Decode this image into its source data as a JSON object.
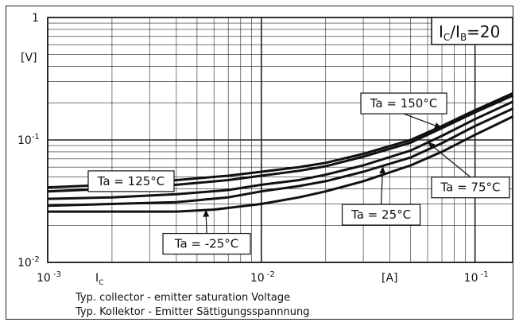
{
  "chart_data": {
    "type": "line",
    "title": "",
    "condition_label": "IC/IB=20",
    "condition_parts": {
      "main1": "I",
      "sub1": "C",
      "slash": "/I",
      "sub2": "B",
      "rest": "=20"
    },
    "xscale": "log",
    "yscale": "log",
    "xlim": [
      0.001,
      0.15
    ],
    "ylim": [
      0.01,
      1
    ],
    "x_tick_labels": [
      {
        "value": 0.001,
        "base": "10",
        "exp": "-3"
      },
      {
        "value": 0.01,
        "base": "10",
        "exp": "-2"
      },
      {
        "value": 0.1,
        "base": "10",
        "exp": "-1"
      }
    ],
    "y_tick_labels": [
      {
        "value": 1,
        "base": "1",
        "exp": ""
      },
      {
        "value": 0.1,
        "base": "10",
        "exp": "-1"
      },
      {
        "value": 0.01,
        "base": "10",
        "exp": "-2"
      }
    ],
    "xlabel_symbol": {
      "main": "I",
      "sub": "C"
    },
    "xlabel_unit": "[A]",
    "ylabel_unit": "[V]",
    "grid": true,
    "line_color": "#111111",
    "series": [
      {
        "name": "Ta = 125°C",
        "x": [
          0.001,
          0.002,
          0.004,
          0.007,
          0.01,
          0.015,
          0.02,
          0.03,
          0.05,
          0.07,
          0.1,
          0.15
        ],
        "y": [
          0.041,
          0.043,
          0.047,
          0.051,
          0.055,
          0.06,
          0.065,
          0.077,
          0.1,
          0.13,
          0.175,
          0.24
        ]
      },
      {
        "name": "Ta = 150°C",
        "x": [
          0.001,
          0.002,
          0.004,
          0.007,
          0.01,
          0.015,
          0.02,
          0.03,
          0.05,
          0.07,
          0.1,
          0.15
        ],
        "y": [
          0.038,
          0.04,
          0.043,
          0.047,
          0.051,
          0.056,
          0.061,
          0.073,
          0.095,
          0.125,
          0.168,
          0.23
        ]
      },
      {
        "name": "Ta = 75°C",
        "x": [
          0.001,
          0.002,
          0.004,
          0.007,
          0.01,
          0.015,
          0.02,
          0.03,
          0.05,
          0.07,
          0.1,
          0.15
        ],
        "y": [
          0.033,
          0.034,
          0.036,
          0.039,
          0.043,
          0.047,
          0.052,
          0.062,
          0.082,
          0.108,
          0.148,
          0.205
        ]
      },
      {
        "name": "Ta = 25°C",
        "x": [
          0.001,
          0.002,
          0.004,
          0.007,
          0.01,
          0.015,
          0.02,
          0.03,
          0.05,
          0.07,
          0.1,
          0.15
        ],
        "y": [
          0.029,
          0.03,
          0.031,
          0.034,
          0.038,
          0.042,
          0.046,
          0.055,
          0.072,
          0.094,
          0.13,
          0.18
        ]
      },
      {
        "name": "Ta = -25°C",
        "x": [
          0.001,
          0.002,
          0.004,
          0.006,
          0.01,
          0.015,
          0.02,
          0.03,
          0.05,
          0.07,
          0.1,
          0.15
        ],
        "y": [
          0.026,
          0.026,
          0.026,
          0.027,
          0.03,
          0.034,
          0.038,
          0.046,
          0.062,
          0.08,
          0.11,
          0.155
        ]
      }
    ],
    "annotations": [
      {
        "label": "Ta = 150°C",
        "target_series": 1,
        "x": 0.07,
        "y": 0.125
      },
      {
        "label": "Ta = 125°C",
        "target_series": 0,
        "x": 0.0025,
        "y": 0.044
      },
      {
        "label": "Ta = 75°C",
        "target_series": 2,
        "x": 0.06,
        "y": 0.096
      },
      {
        "label": "Ta = 25°C",
        "target_series": 3,
        "x": 0.037,
        "y": 0.061
      },
      {
        "label": "Ta = -25°C",
        "target_series": 4,
        "x": 0.0055,
        "y": 0.027
      }
    ]
  },
  "caption": {
    "line1": "Typ. collector - emitter saturation Voltage",
    "line2": "Typ. Kollektor - Emitter Sättigungsspannnung"
  }
}
